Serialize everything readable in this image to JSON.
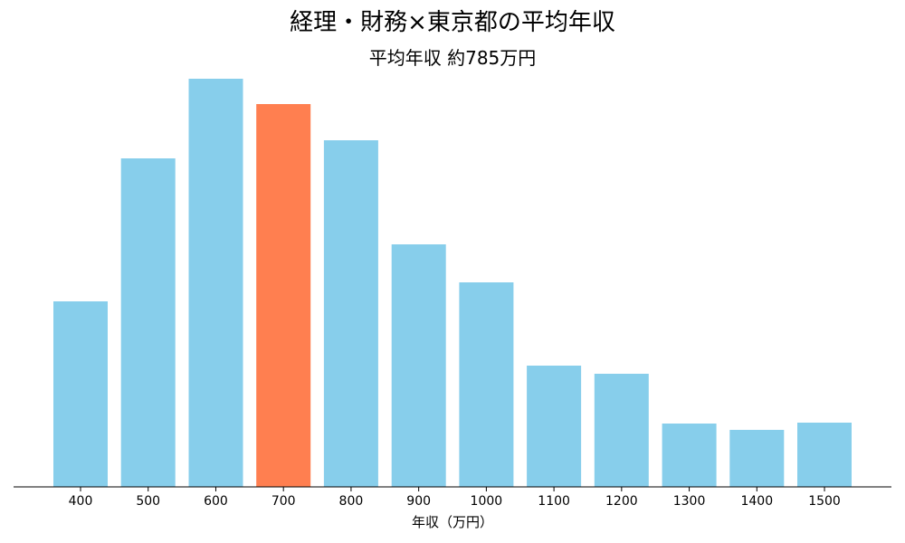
{
  "chart_data": {
    "type": "bar",
    "title": "経理・財務×東京都の平均年収",
    "subtitle": "平均年収 約785万円",
    "xlabel": "年収（万円）",
    "ylabel": "",
    "categories": [
      "400",
      "500",
      "600",
      "700",
      "800",
      "900",
      "1000",
      "1100",
      "1200",
      "1300",
      "1400",
      "1500"
    ],
    "values": [
      205,
      363,
      451,
      423,
      383,
      268,
      226,
      134,
      125,
      70,
      63,
      71
    ],
    "highlight_index": 3,
    "ylim": [
      0,
      451
    ],
    "grid": false,
    "colors": {
      "bar": "#87CEEB",
      "highlight": "#FF7F50",
      "axis": "#000000"
    }
  }
}
